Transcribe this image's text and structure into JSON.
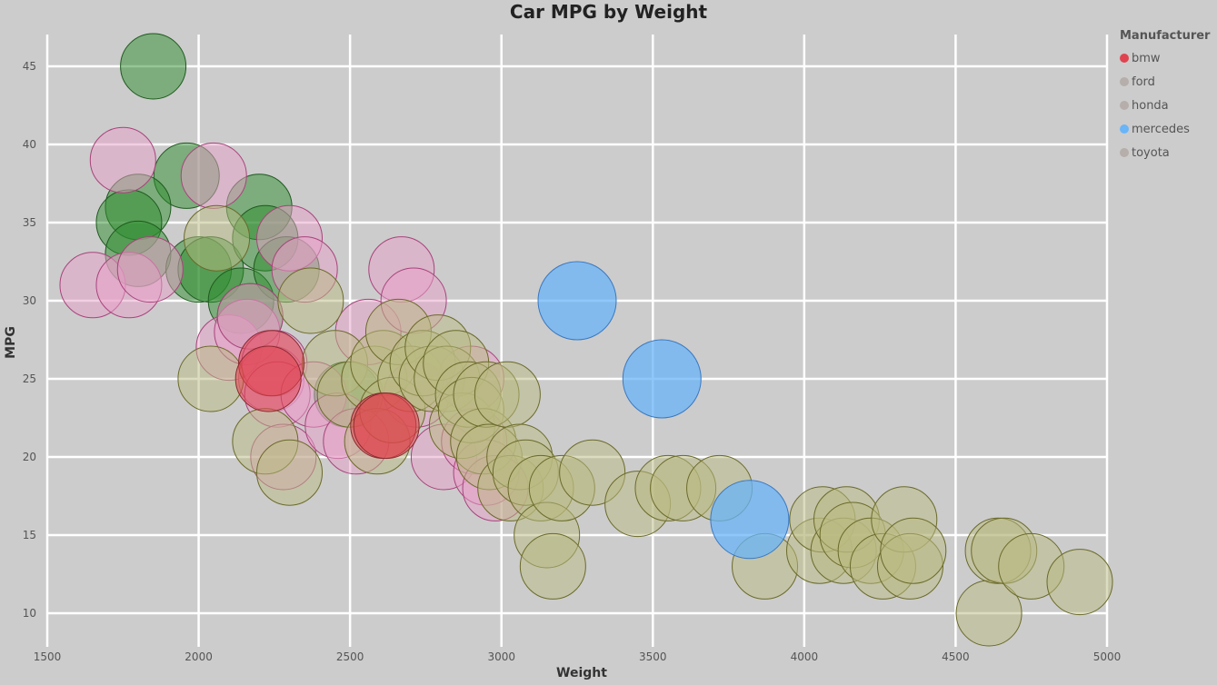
{
  "chart_data": {
    "type": "scatter",
    "title": "Car MPG by Weight",
    "xlabel": "Weight",
    "ylabel": "MPG",
    "xlim": [
      1500,
      5000
    ],
    "ylim": [
      10,
      45
    ],
    "xticks": [
      "1500",
      "2000",
      "2500",
      "3000",
      "3500",
      "4000",
      "4500",
      "5000"
    ],
    "yticks": [
      "10",
      "15",
      "20",
      "25",
      "30",
      "35",
      "40",
      "45"
    ],
    "grid": true,
    "legend_title": "Manufacturer",
    "legend_position": "top-right",
    "legend": [
      {
        "name": "bmw",
        "color": "#e0434f",
        "active": true
      },
      {
        "name": "ford",
        "color": "#b5aeaa",
        "active": false
      },
      {
        "name": "honda",
        "color": "#b5aeaa",
        "active": false
      },
      {
        "name": "mercedes",
        "color": "#6ab4f8",
        "active": true
      },
      {
        "name": "toyota",
        "color": "#b5aeaa",
        "active": false
      }
    ],
    "series": [
      {
        "name": "green",
        "fill": "rgba(46,139,46,0.5)",
        "stroke": "#1e5a1e",
        "points": [
          [
            1850,
            45
          ],
          [
            1960,
            38
          ],
          [
            1800,
            36
          ],
          [
            1770,
            35
          ],
          [
            1800,
            33
          ],
          [
            2000,
            32
          ],
          [
            2040,
            32
          ],
          [
            2140,
            30
          ],
          [
            2200,
            36
          ],
          [
            2220,
            34
          ],
          [
            2290,
            32
          ],
          [
            2490,
            24
          ],
          [
            2170,
            29
          ]
        ]
      },
      {
        "name": "pink",
        "fill": "rgba(232,160,200,0.5)",
        "stroke": "#a8437c",
        "points": [
          [
            1650,
            31
          ],
          [
            1750,
            39
          ],
          [
            1770,
            31
          ],
          [
            1840,
            32
          ],
          [
            2050,
            38
          ],
          [
            2100,
            27
          ],
          [
            2160,
            28
          ],
          [
            2170,
            29
          ],
          [
            2240,
            25
          ],
          [
            2250,
            26
          ],
          [
            2260,
            24
          ],
          [
            2280,
            20
          ],
          [
            2300,
            34
          ],
          [
            2350,
            32
          ],
          [
            2380,
            24
          ],
          [
            2460,
            22
          ],
          [
            2520,
            21
          ],
          [
            2560,
            28
          ],
          [
            2670,
            32
          ],
          [
            2710,
            30
          ],
          [
            2720,
            24
          ],
          [
            2810,
            20
          ],
          [
            2900,
            25
          ],
          [
            2910,
            21
          ],
          [
            2950,
            19
          ],
          [
            2980,
            18
          ]
        ]
      },
      {
        "name": "olive",
        "fill": "rgba(185,185,130,0.5)",
        "stroke": "#6a6a2a",
        "points": [
          [
            2040,
            25
          ],
          [
            2060,
            34
          ],
          [
            2220,
            21
          ],
          [
            2300,
            19
          ],
          [
            2370,
            30
          ],
          [
            2450,
            26
          ],
          [
            2500,
            24
          ],
          [
            2580,
            25
          ],
          [
            2590,
            21
          ],
          [
            2610,
            26
          ],
          [
            2640,
            23
          ],
          [
            2660,
            28
          ],
          [
            2700,
            25
          ],
          [
            2740,
            26
          ],
          [
            2770,
            25
          ],
          [
            2790,
            27
          ],
          [
            2820,
            25
          ],
          [
            2850,
            26
          ],
          [
            2870,
            22
          ],
          [
            2890,
            24
          ],
          [
            2900,
            23
          ],
          [
            2940,
            21
          ],
          [
            2950,
            24
          ],
          [
            2960,
            20
          ],
          [
            3020,
            24
          ],
          [
            3030,
            18
          ],
          [
            3060,
            20
          ],
          [
            3080,
            19
          ],
          [
            3130,
            18
          ],
          [
            3150,
            15
          ],
          [
            3170,
            13
          ],
          [
            3200,
            18
          ],
          [
            3300,
            19
          ],
          [
            3450,
            17
          ],
          [
            3550,
            18
          ],
          [
            3600,
            18
          ],
          [
            3720,
            18
          ],
          [
            3870,
            13
          ],
          [
            4050,
            14
          ],
          [
            4060,
            16
          ],
          [
            4130,
            14
          ],
          [
            4140,
            16
          ],
          [
            4160,
            15
          ],
          [
            4220,
            14
          ],
          [
            4260,
            13
          ],
          [
            4330,
            16
          ],
          [
            4350,
            13
          ],
          [
            4360,
            14
          ],
          [
            4610,
            10
          ],
          [
            4640,
            14
          ],
          [
            4660,
            14
          ],
          [
            4750,
            13
          ],
          [
            4910,
            12
          ]
        ]
      },
      {
        "name": "bmw",
        "fill": "rgba(224,67,79,0.55)",
        "stroke": "#8a2a30",
        "points": [
          [
            2240,
            26
          ],
          [
            2230,
            25
          ],
          [
            2610,
            22
          ],
          [
            2620,
            22
          ]
        ]
      },
      {
        "name": "mercedes",
        "fill": "rgba(106,180,248,0.75)",
        "stroke": "#3a78c0",
        "points": [
          [
            3250,
            30
          ],
          [
            3530,
            25
          ],
          [
            3820,
            16
          ]
        ]
      }
    ]
  }
}
